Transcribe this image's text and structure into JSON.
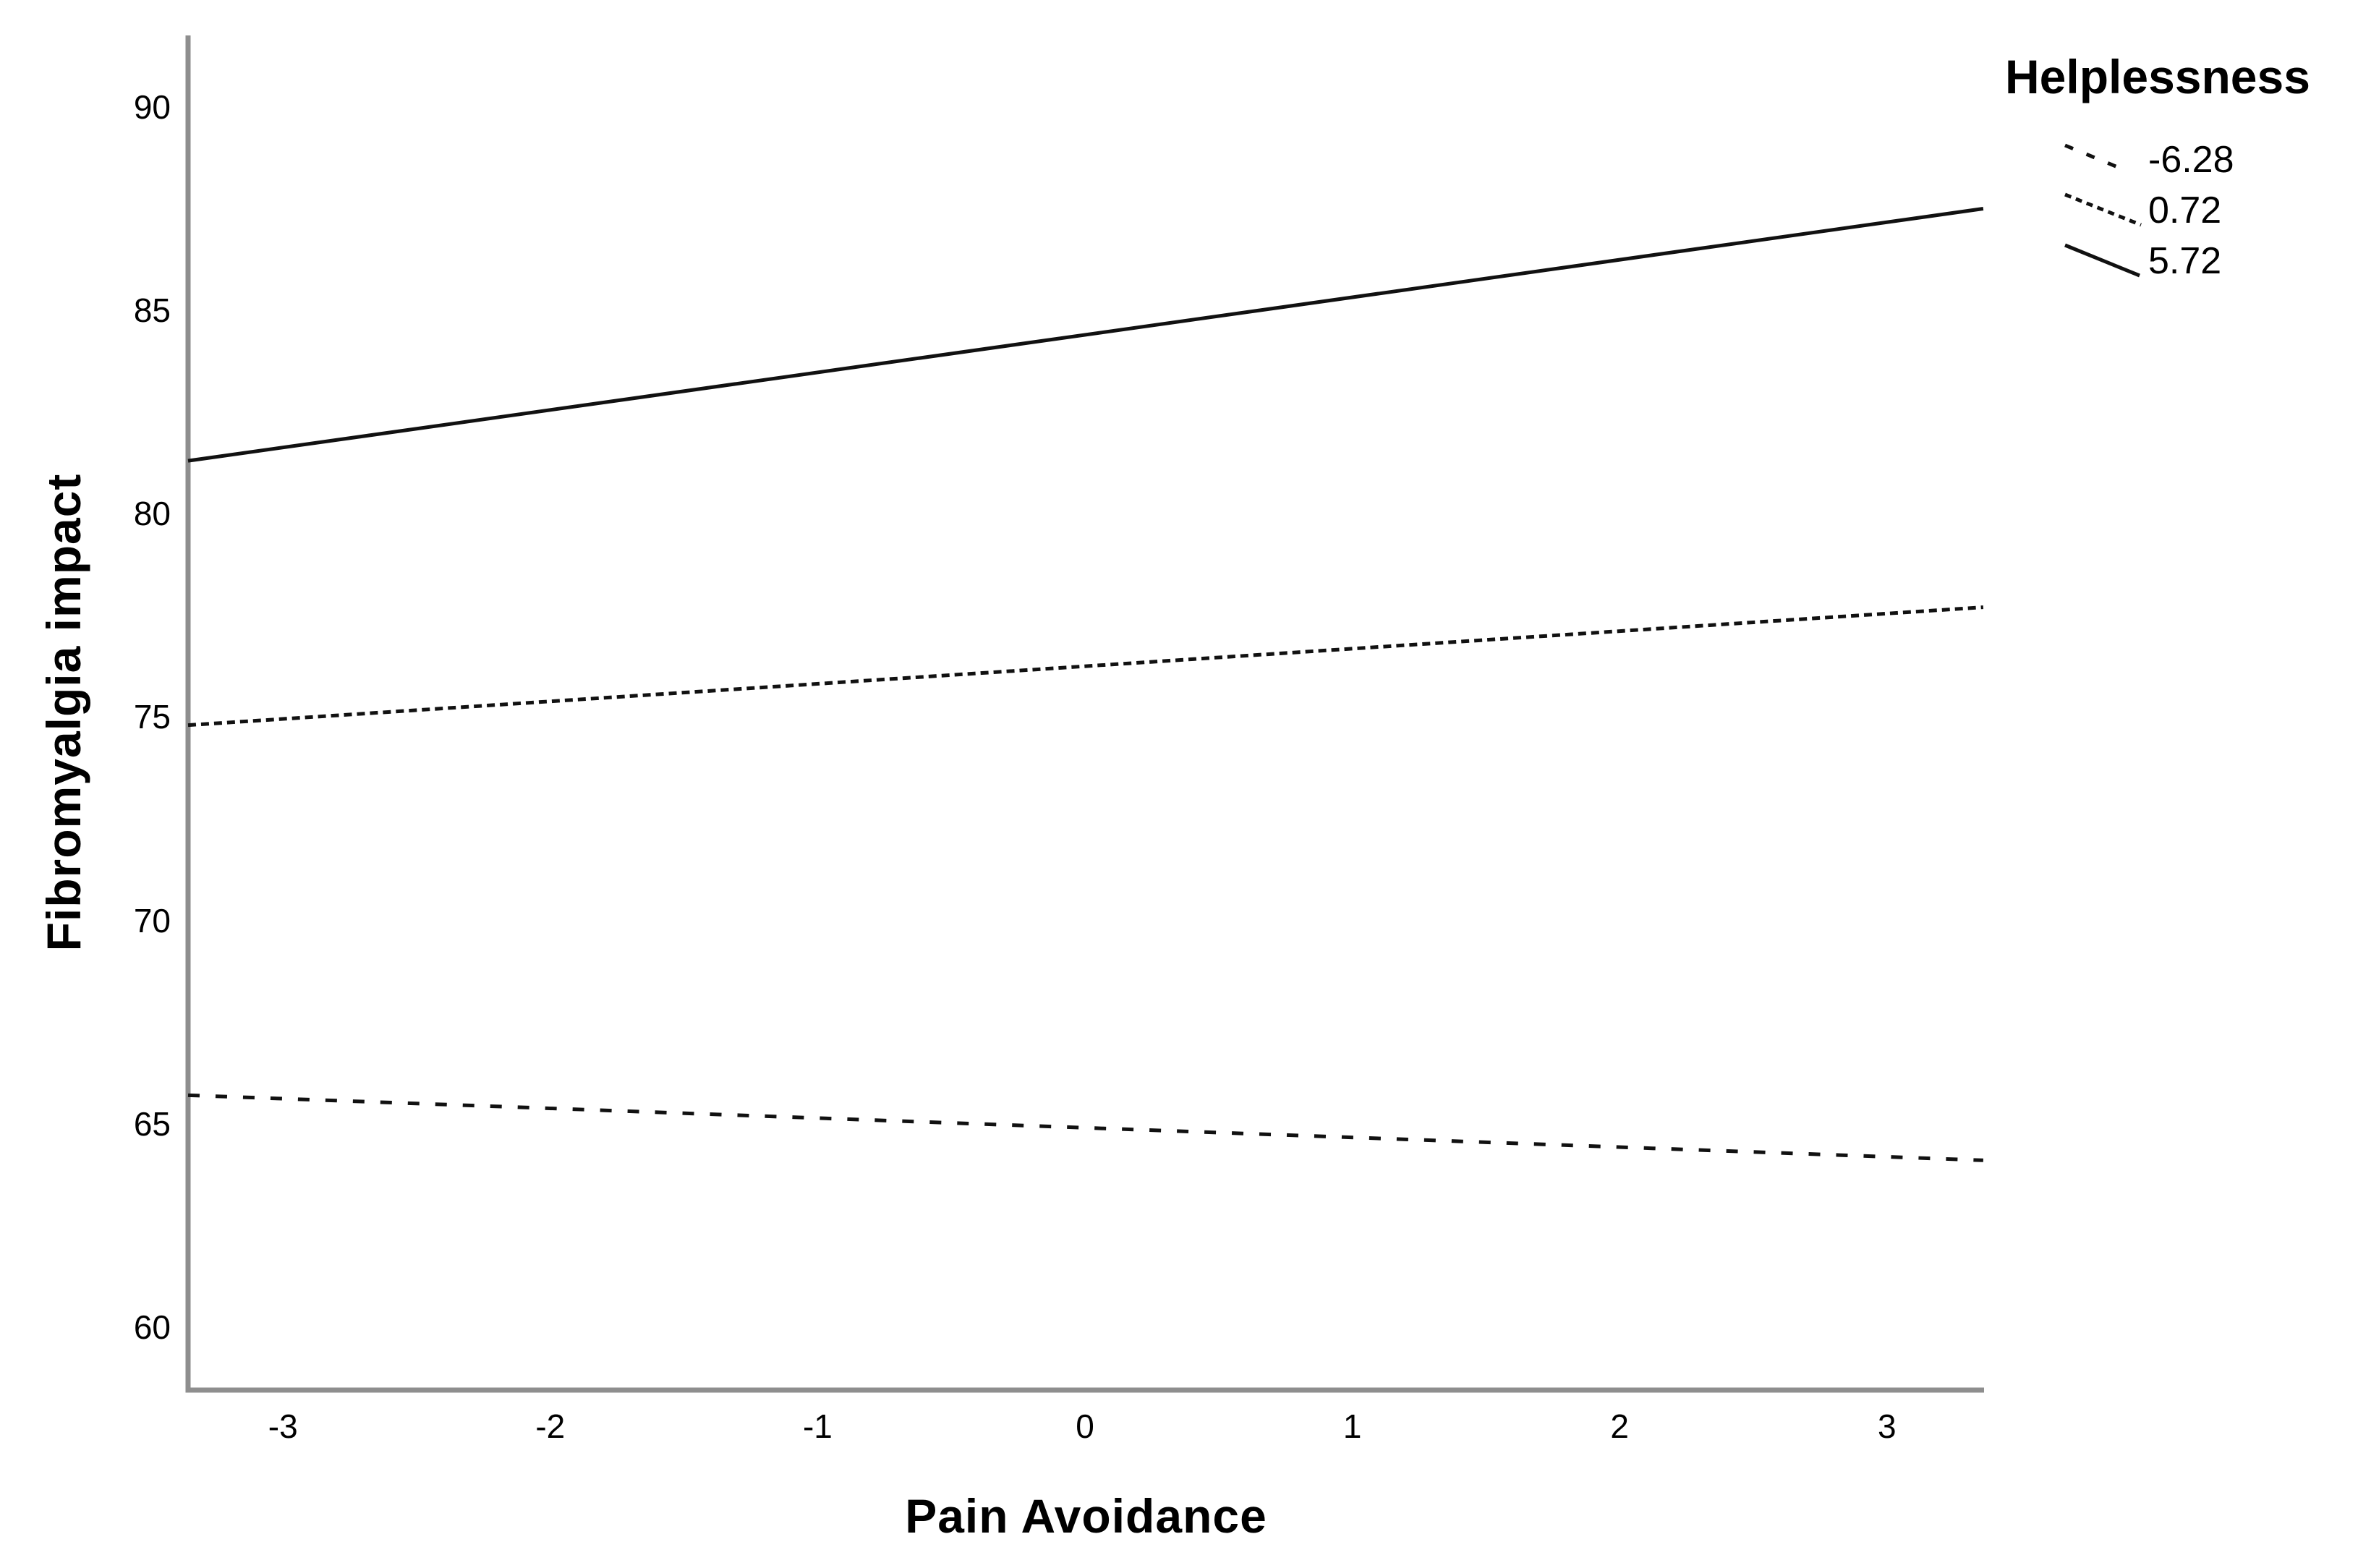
{
  "chart_data": {
    "type": "line",
    "title": "",
    "xlabel": "Pain Avoidance",
    "ylabel": "Fibromyalgia impact",
    "legend": {
      "title": "Helplessness",
      "position": "top-right",
      "items": [
        {
          "label": "-6.28",
          "style": "dashed-coarse"
        },
        {
          "label": "0.72",
          "style": "dashed-fine"
        },
        {
          "label": "5.72",
          "style": "solid"
        }
      ]
    },
    "xlim": [
      -3.355,
      3.363
    ],
    "ylim": [
      58.45,
      91.76
    ],
    "x_ticks": [
      -3,
      -2,
      -1,
      0,
      1,
      2,
      3
    ],
    "y_ticks": [
      60,
      65,
      70,
      75,
      80,
      85,
      90
    ],
    "grid": false,
    "series": [
      {
        "name": "-6.28",
        "style": "dashed-coarse",
        "x": [
          -3.355,
          3.36
        ],
        "y": [
          65.7,
          64.1
        ]
      },
      {
        "name": "0.72",
        "style": "dashed-fine",
        "x": [
          -3.355,
          3.36
        ],
        "y": [
          74.8,
          77.7
        ]
      },
      {
        "name": "5.72",
        "style": "solid",
        "x": [
          -3.355,
          3.36
        ],
        "y": [
          81.3,
          87.5
        ]
      }
    ],
    "colors": {
      "line": "#111111",
      "axis": "#8e8e8e",
      "text": "#000000",
      "background": "#ffffff"
    }
  }
}
